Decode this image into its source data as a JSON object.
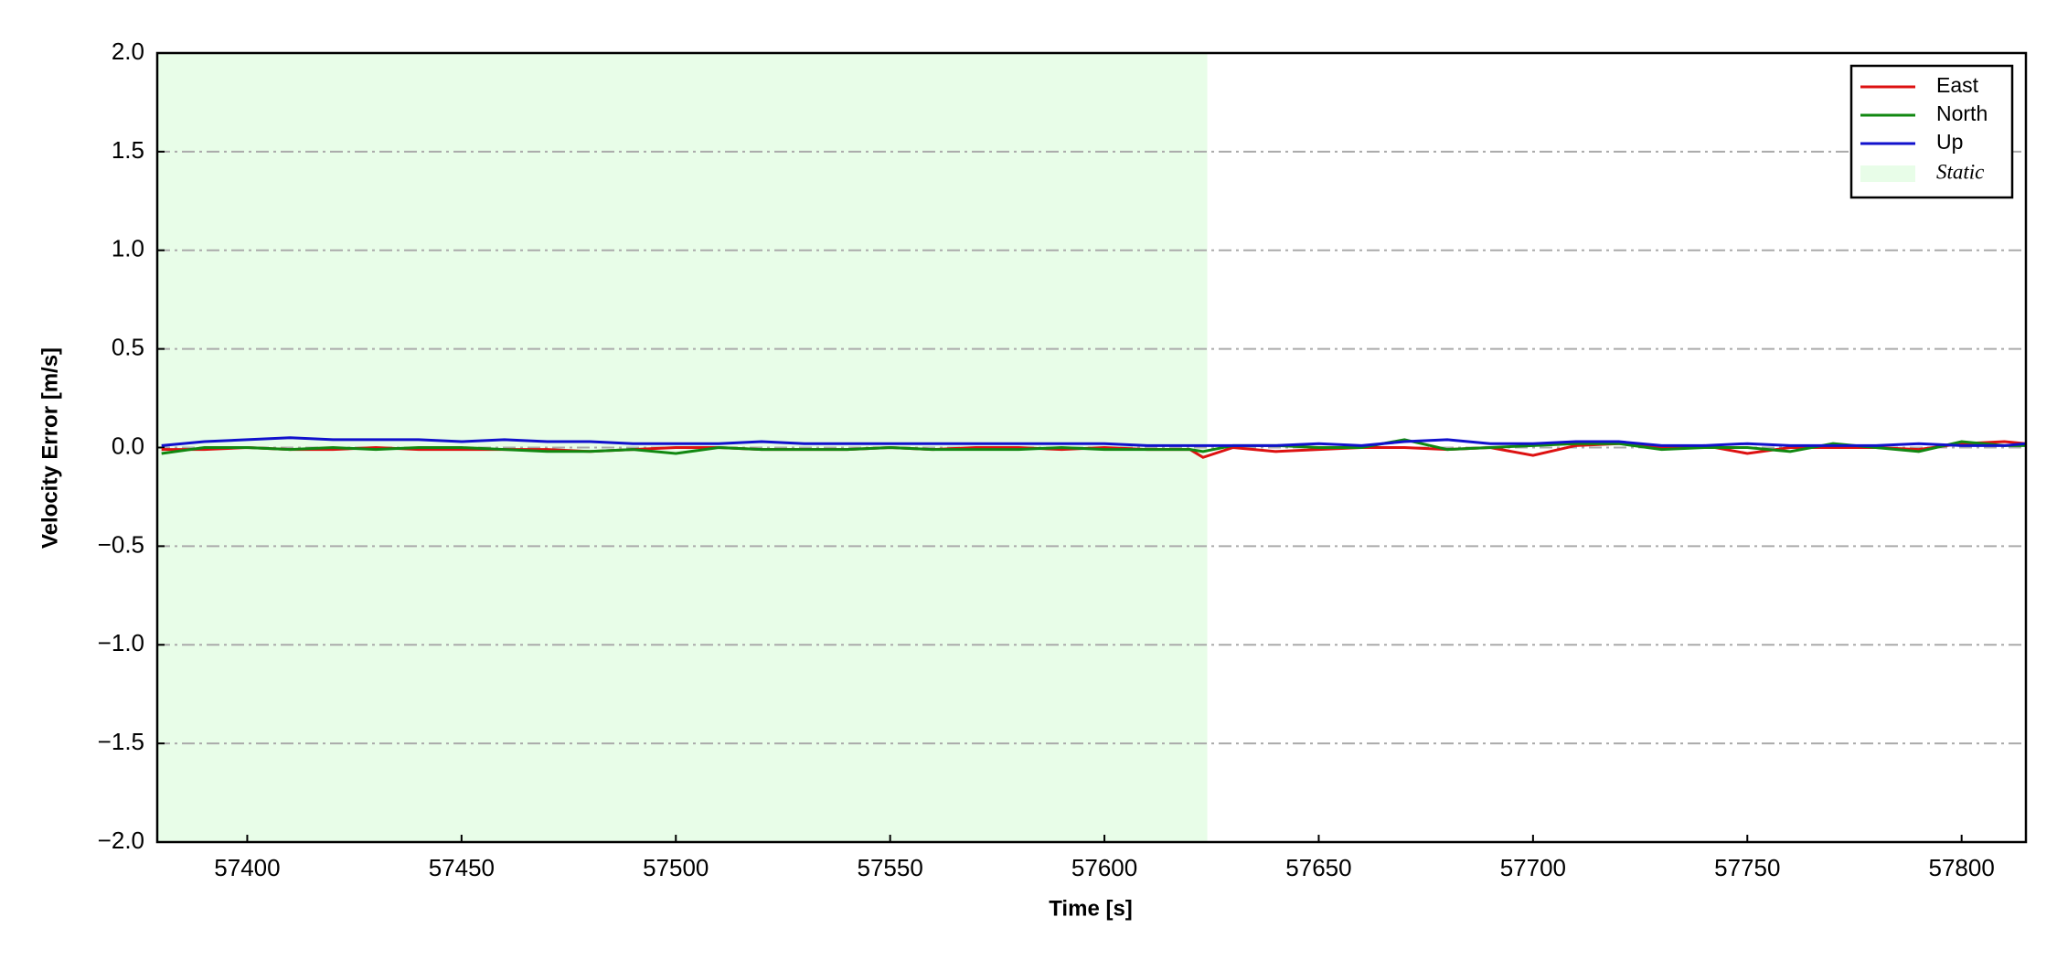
{
  "chart_data": {
    "type": "line",
    "xlabel": "Time [s]",
    "ylabel": "Velocity Error [m/s]",
    "x": [
      57380,
      57390,
      57400,
      57410,
      57420,
      57430,
      57440,
      57450,
      57460,
      57470,
      57480,
      57490,
      57500,
      57510,
      57520,
      57530,
      57540,
      57550,
      57560,
      57570,
      57580,
      57590,
      57600,
      57610,
      57620,
      57623,
      57630,
      57640,
      57650,
      57660,
      57670,
      57680,
      57690,
      57700,
      57710,
      57720,
      57730,
      57740,
      57750,
      57760,
      57770,
      57780,
      57790,
      57800,
      57810,
      57815
    ],
    "series": [
      {
        "name": "East",
        "color": "#dd1111",
        "values": [
          -0.01,
          -0.01,
          0.0,
          -0.01,
          -0.01,
          0.0,
          -0.01,
          -0.01,
          -0.01,
          -0.01,
          -0.02,
          -0.01,
          0.0,
          0.0,
          -0.01,
          -0.01,
          -0.01,
          0.0,
          -0.01,
          0.0,
          0.0,
          -0.01,
          0.0,
          -0.01,
          -0.01,
          -0.05,
          0.0,
          -0.02,
          -0.01,
          0.0,
          0.0,
          -0.01,
          0.0,
          -0.04,
          0.01,
          0.02,
          0.0,
          0.01,
          -0.03,
          0.0,
          0.0,
          0.0,
          -0.01,
          0.02,
          0.03,
          0.02
        ]
      },
      {
        "name": "North",
        "color": "#118811",
        "values": [
          -0.03,
          0.0,
          0.0,
          -0.01,
          0.0,
          -0.01,
          0.0,
          0.0,
          -0.01,
          -0.02,
          -0.02,
          -0.01,
          -0.03,
          0.0,
          -0.01,
          -0.01,
          -0.01,
          0.0,
          -0.01,
          -0.01,
          -0.01,
          0.0,
          -0.01,
          -0.01,
          -0.01,
          -0.02,
          0.01,
          0.01,
          0.0,
          0.0,
          0.04,
          -0.01,
          0.0,
          0.01,
          0.02,
          0.02,
          -0.01,
          0.0,
          0.0,
          -0.02,
          0.02,
          0.0,
          -0.02,
          0.03,
          0.01,
          0.01
        ]
      },
      {
        "name": "Up",
        "color": "#1111cc",
        "values": [
          0.01,
          0.03,
          0.04,
          0.05,
          0.04,
          0.04,
          0.04,
          0.03,
          0.04,
          0.03,
          0.03,
          0.02,
          0.02,
          0.02,
          0.03,
          0.02,
          0.02,
          0.02,
          0.02,
          0.02,
          0.02,
          0.02,
          0.02,
          0.01,
          0.01,
          0.01,
          0.01,
          0.01,
          0.02,
          0.01,
          0.03,
          0.04,
          0.02,
          0.02,
          0.03,
          0.03,
          0.01,
          0.01,
          0.02,
          0.01,
          0.01,
          0.01,
          0.02,
          0.01,
          0.01,
          0.02
        ]
      }
    ],
    "shaded_region": {
      "name": "Static",
      "x0": 57379,
      "x1": 57624,
      "color": "#e8fde8"
    },
    "xlim": [
      57379,
      57815
    ],
    "xticks": [
      57400,
      57450,
      57500,
      57550,
      57600,
      57650,
      57700,
      57750,
      57800
    ],
    "ylim": [
      -2.0,
      2.0
    ],
    "yticks": [
      {
        "value": -2.0,
        "label": "−2.0"
      },
      {
        "value": -1.5,
        "label": "−1.5"
      },
      {
        "value": -1.0,
        "label": "−1.0"
      },
      {
        "value": -0.5,
        "label": "−0.5"
      },
      {
        "value": 0.0,
        "label": "0.0"
      },
      {
        "value": 0.5,
        "label": "0.5"
      },
      {
        "value": 1.0,
        "label": "1.0"
      },
      {
        "value": 1.5,
        "label": "1.5"
      },
      {
        "value": 2.0,
        "label": "2.0"
      }
    ],
    "grid": true,
    "legend": "upper right"
  }
}
